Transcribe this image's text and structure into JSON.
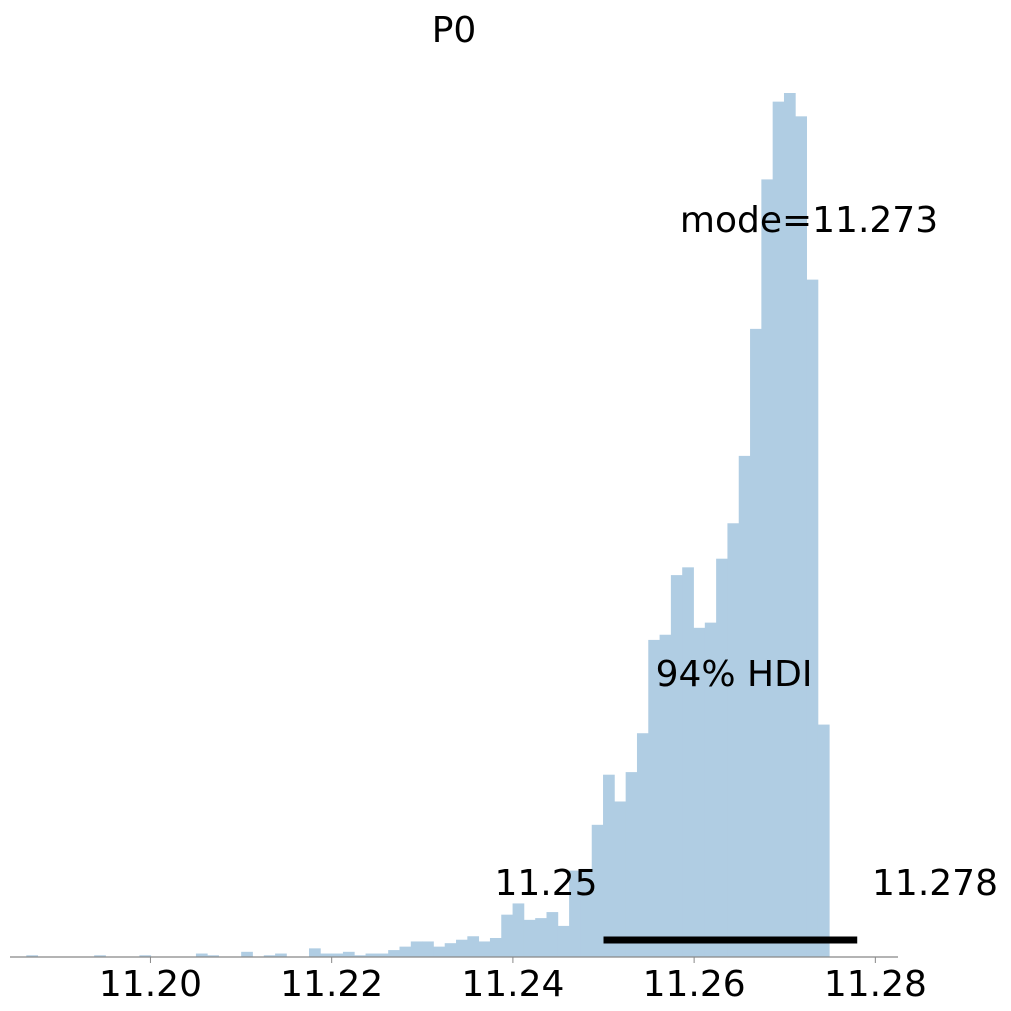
{
  "chart_data": {
    "type": "bar",
    "title": "P0",
    "xlim": [
      11.1845,
      11.2825
    ],
    "ylim": [
      0,
      1
    ],
    "bin_start": 11.1863,
    "bin_width": 0.001248,
    "values": [
      0.002,
      0.0,
      0.0,
      0.0,
      0.0,
      0.0,
      0.002,
      0.0,
      0.0,
      0.0,
      0.002,
      0.0,
      0.0,
      0.0,
      0.0,
      0.004,
      0.002,
      0.0,
      0.0,
      0.006,
      0.0,
      0.002,
      0.004,
      0.0,
      0.0,
      0.01,
      0.004,
      0.004,
      0.006,
      0.002,
      0.004,
      0.004,
      0.008,
      0.012,
      0.018,
      0.018,
      0.012,
      0.016,
      0.02,
      0.024,
      0.018,
      0.022,
      0.049,
      0.062,
      0.043,
      0.045,
      0.052,
      0.036,
      0.1,
      0.102,
      0.153,
      0.211,
      0.18,
      0.214,
      0.259,
      0.367,
      0.373,
      0.442,
      0.451,
      0.381,
      0.387,
      0.461,
      0.502,
      0.58,
      0.727,
      0.9,
      0.99,
      1.0,
      0.973,
      0.784,
      0.269
    ],
    "hdi": {
      "label": "94% HDI",
      "low": 11.25,
      "high": 11.278,
      "low_label": "11.25",
      "high_label": "11.278"
    },
    "mode_label": "mode=11.273",
    "xticks": [
      11.2,
      11.22,
      11.24,
      11.26,
      11.28
    ],
    "xtick_labels": [
      "11.20",
      "11.22",
      "11.24",
      "11.26",
      "11.28"
    ],
    "colors": {
      "bars": "#b0cde3",
      "hdi": "#000000",
      "axis": "#888888"
    }
  }
}
